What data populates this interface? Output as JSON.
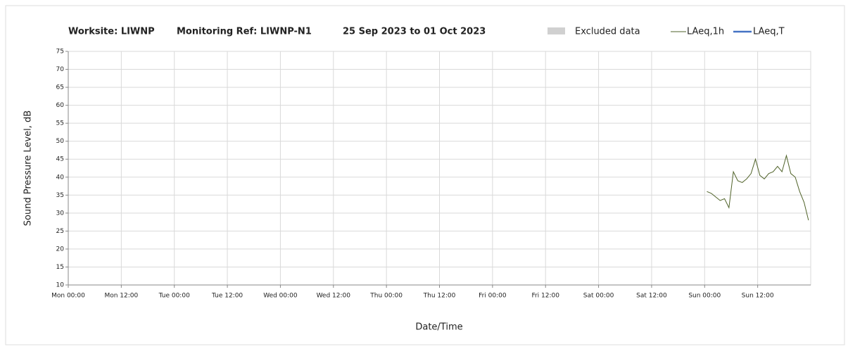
{
  "chart_data": {
    "type": "line",
    "title_parts": [
      "Worksite: LIWNP",
      "Monitoring Ref: LIWNP-N1",
      "25 Sep 2023 to 01 Oct 2023"
    ],
    "xlabel": "Date/Time",
    "ylabel": "Sound Pressure Level, dB",
    "x": [
      144.5,
      145.5,
      146.5,
      147.5,
      148.5,
      149.5,
      150.5,
      151.5,
      152.5,
      153.5,
      154.5,
      155.5,
      156.5,
      157.5,
      158.5,
      159.5,
      160.5,
      161.5,
      162.5,
      163.5,
      164.5,
      165.5,
      166.5,
      167.5
    ],
    "series": [
      {
        "name": "LAeq,1h",
        "color": "#4f6228",
        "values": [
          36,
          35.5,
          34.5,
          33.5,
          34,
          31.5,
          41.5,
          39,
          38.5,
          39.5,
          41,
          45,
          40.5,
          39.5,
          41,
          41.5,
          43,
          41.5,
          46,
          41,
          40,
          36,
          33,
          28
        ]
      }
    ],
    "extra_legend": [
      {
        "name": "Excluded data",
        "color": "#d0d0d0"
      },
      {
        "name": "LAeq,T",
        "color": "#4472c4"
      }
    ],
    "xlim": [
      0,
      168
    ],
    "xticks": [
      {
        "value": 0,
        "label": "Mon 00:00"
      },
      {
        "value": 12,
        "label": "Mon 12:00"
      },
      {
        "value": 24,
        "label": "Tue 00:00"
      },
      {
        "value": 36,
        "label": "Tue 12:00"
      },
      {
        "value": 48,
        "label": "Wed 00:00"
      },
      {
        "value": 60,
        "label": "Wed 12:00"
      },
      {
        "value": 72,
        "label": "Thu 00:00"
      },
      {
        "value": 84,
        "label": "Thu 12:00"
      },
      {
        "value": 96,
        "label": "Fri 00:00"
      },
      {
        "value": 108,
        "label": "Fri 12:00"
      },
      {
        "value": 120,
        "label": "Sat 00:00"
      },
      {
        "value": 132,
        "label": "Sat 12:00"
      },
      {
        "value": 144,
        "label": "Sun 00:00"
      },
      {
        "value": 156,
        "label": "Sun 12:00"
      }
    ],
    "ylim": [
      10,
      75
    ],
    "yticks": [
      10,
      15,
      20,
      25,
      30,
      35,
      40,
      45,
      50,
      55,
      60,
      65,
      70,
      75
    ],
    "grid": true
  }
}
